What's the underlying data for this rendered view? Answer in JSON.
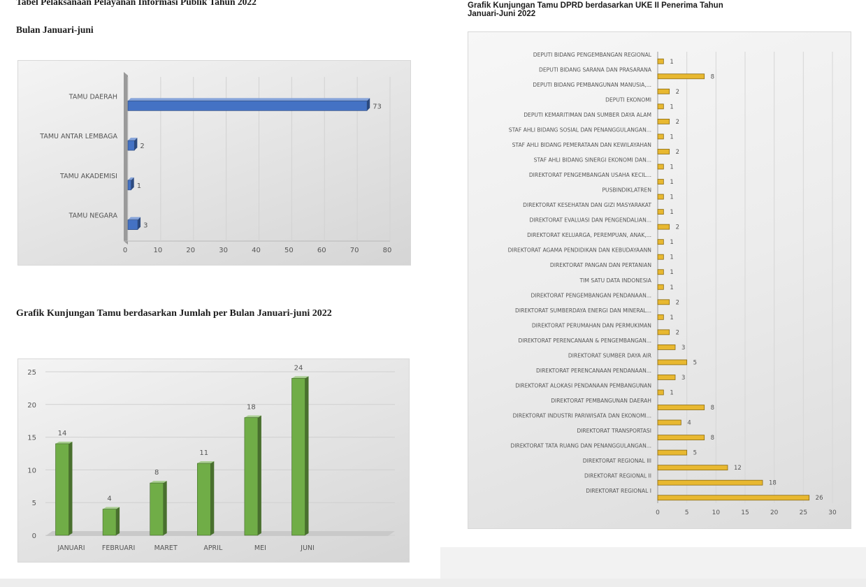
{
  "left": {
    "title_line1": "Tabel Pelaksanaan Pelayanan Informasi Publik Tahun 2022",
    "title_line2": "Bulan Januari-juni",
    "chart2_title": "Grafik  Kunjungan Tamu berdasarkan Jumlah per Bulan Januari-juni 2022"
  },
  "right": {
    "title_line1": "Grafik  Kunjungan Tamu DPRD berdasarkan UKE II Penerima Tahun",
    "title_line2": "Januari-Juni 2022"
  },
  "chart_data": [
    {
      "type": "bar",
      "orientation": "horizontal",
      "title": "Tabel Pelaksanaan Pelayanan Informasi Publik Tahun 2022 - Bulan Januari-juni",
      "categories": [
        "TAMU NEGARA",
        "TAMU AKADEMISI",
        "TAMU ANTAR LEMBAGA",
        "TAMU DAERAH"
      ],
      "values": [
        3,
        1,
        2,
        73
      ],
      "xlim": [
        0,
        80
      ],
      "ticks": [
        0,
        10,
        20,
        30,
        40,
        50,
        60,
        70,
        80
      ],
      "color": "#4472c4"
    },
    {
      "type": "bar",
      "orientation": "vertical",
      "title": "Grafik  Kunjungan Tamu berdasarkan Jumlah per Bulan Januari-juni 2022",
      "categories": [
        "JANUARI",
        "FEBRUARI",
        "MARET",
        "APRIL",
        "MEI",
        "JUNI"
      ],
      "values": [
        14,
        4,
        8,
        11,
        18,
        24
      ],
      "ylim": [
        0,
        25
      ],
      "ticks": [
        0,
        5,
        10,
        15,
        20,
        25
      ],
      "color": "#70ad47"
    },
    {
      "type": "bar",
      "orientation": "horizontal",
      "title": "Grafik  Kunjungan Tamu DPRD berdasarkan UKE II Penerima Tahun Januari-Juni 2022",
      "categories": [
        "DEPUTI BIDANG PENGEMBANGAN REGIONAL",
        "DEPUTI BIDANG SARANA DAN PRASARANA",
        "DEPUTI BIDANG PEMBANGUNAN MANUSIA,...",
        "DEPUTI EKONOMI",
        "DEPUTI KEMARITIMAN DAN SUMBER DAYA ALAM",
        "STAF AHLI BIDANG SOSIAL DAN PENANGGULANGAN...",
        "STAF AHLI BIDANG PEMERATAAN DAN KEWILAYAHAN",
        "STAF AHLI BIDANG SINERGI EKONOMI DAN...",
        "DIREKTORAT PENGEMBANGAN USAHA KECIL...",
        "PUSBINDIKLATREN",
        "DIREKTORAT KESEHATAN DAN GIZI MASYARAKAT",
        "DIREKTORAT EVALUASI DAN PENGENDALIAN...",
        "DIREKTORAT KELUARGA, PEREMPUAN, ANAK,...",
        "DIREKTORAT  AGAMA PENDIDIKAN DAN KEBUDAYAANN",
        "DIREKTORAT PANGAN DAN PERTANIAN",
        "TIM SATU DATA INDONESIA",
        "DIREKTORAT PENGEMBANGAN  PENDANAAN...",
        "DIREKTORAT SUMBERDAYA ENERGI DAN MINERAL...",
        "DIREKTORAT PERUMAHAN DAN PERMUKIMAN",
        "DIREKTORAT PERENCANAAN & PENGEMBANGAN...",
        "DIREKTORAT SUMBER DAYA AIR",
        "DIREKTORAT PERENCANAAN PENDANAAN...",
        "DIREKTORAT ALOKASI PENDANAAN PEMBANGUNAN",
        "DIREKTORAT PEMBANGUNAN DAERAH",
        "DIREKTORAT INDUSTRI PARIWISATA DAN EKONOMI...",
        "DIREKTORAT TRANSPORTASI",
        "DIREKTORAT TATA RUANG DAN PENANGGULANGAN...",
        "DIREKTORAT REGIONAL III",
        "DIREKTORAT REGIONAL II",
        "DIREKTORAT REGIONAL I"
      ],
      "values": [
        1,
        8,
        2,
        1,
        2,
        1,
        2,
        1,
        1,
        1,
        1,
        2,
        1,
        1,
        1,
        1,
        2,
        1,
        2,
        3,
        5,
        3,
        1,
        8,
        4,
        8,
        5,
        12,
        18,
        26
      ],
      "xlim": [
        0,
        30
      ],
      "ticks": [
        0,
        5,
        10,
        15,
        20,
        25,
        30
      ],
      "color": "#e8b830"
    }
  ]
}
